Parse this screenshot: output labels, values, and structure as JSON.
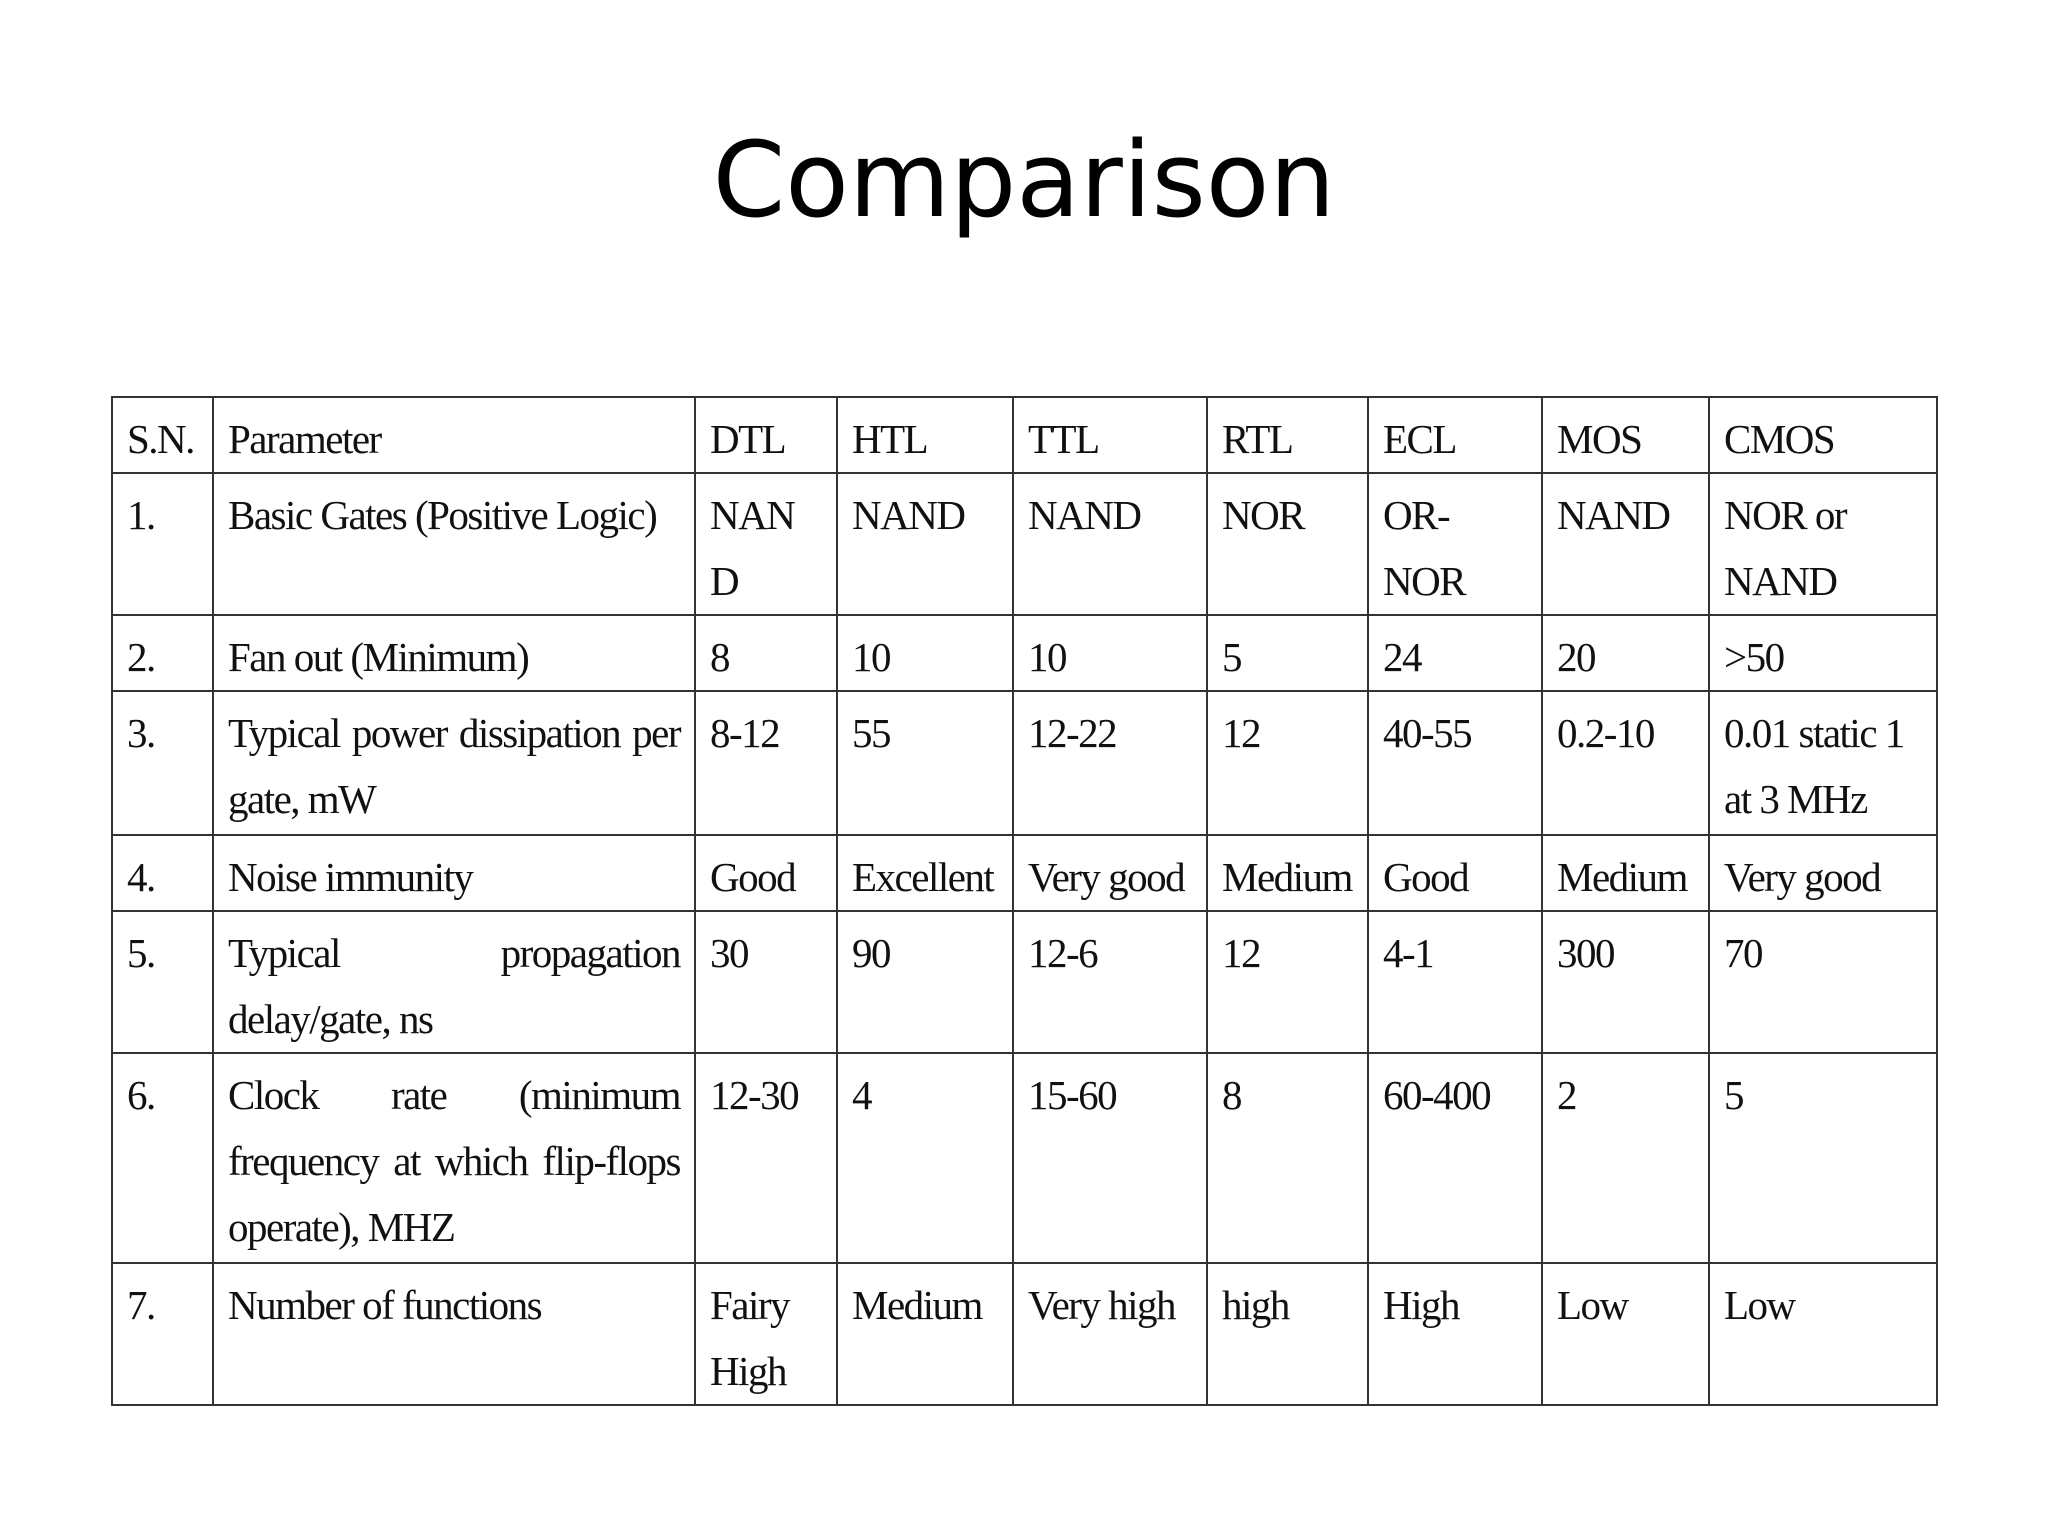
{
  "header": {
    "title": "Comparison"
  },
  "table": {
    "columns": [
      "S.N.",
      "Parameter",
      "DTL",
      "HTL",
      "TTL",
      "RTL",
      "ECL",
      "MOS",
      "CMOS"
    ],
    "rows": [
      [
        "1.",
        "Basic Gates (Positive Logic)",
        "NAND",
        "NAND",
        "NAND",
        "NOR",
        "OR-NOR",
        "NAND",
        "NOR or NAND"
      ],
      [
        "2.",
        "Fan out (Minimum)",
        "8",
        "10",
        "10",
        "5",
        "24",
        "20",
        ">50"
      ],
      [
        "3.",
        "Typical power dissipation per gate, mW",
        "8-12",
        "55",
        "12-22",
        "12",
        "40-55",
        "0.2-10",
        "0.01 static 1 at 3 MHz"
      ],
      [
        "4.",
        "Noise immunity",
        "Good",
        "Excellent",
        "Very good",
        "Medium",
        "Good",
        "Medium",
        "Very good"
      ],
      [
        "5.",
        "Typical propagation delay/gate, ns",
        "30",
        "90",
        "12-6",
        "12",
        "4-1",
        "300",
        "70"
      ],
      [
        "6.",
        "Clock rate (minimum frequency at which flip-flops operate), MHZ",
        "12-30",
        "4",
        "15-60",
        "8",
        "60-400",
        "2",
        "5"
      ],
      [
        "7.",
        "Number of functions",
        "Fairy High",
        "Medium",
        "Very high",
        "high",
        "High",
        "Low",
        "Low"
      ]
    ]
  }
}
